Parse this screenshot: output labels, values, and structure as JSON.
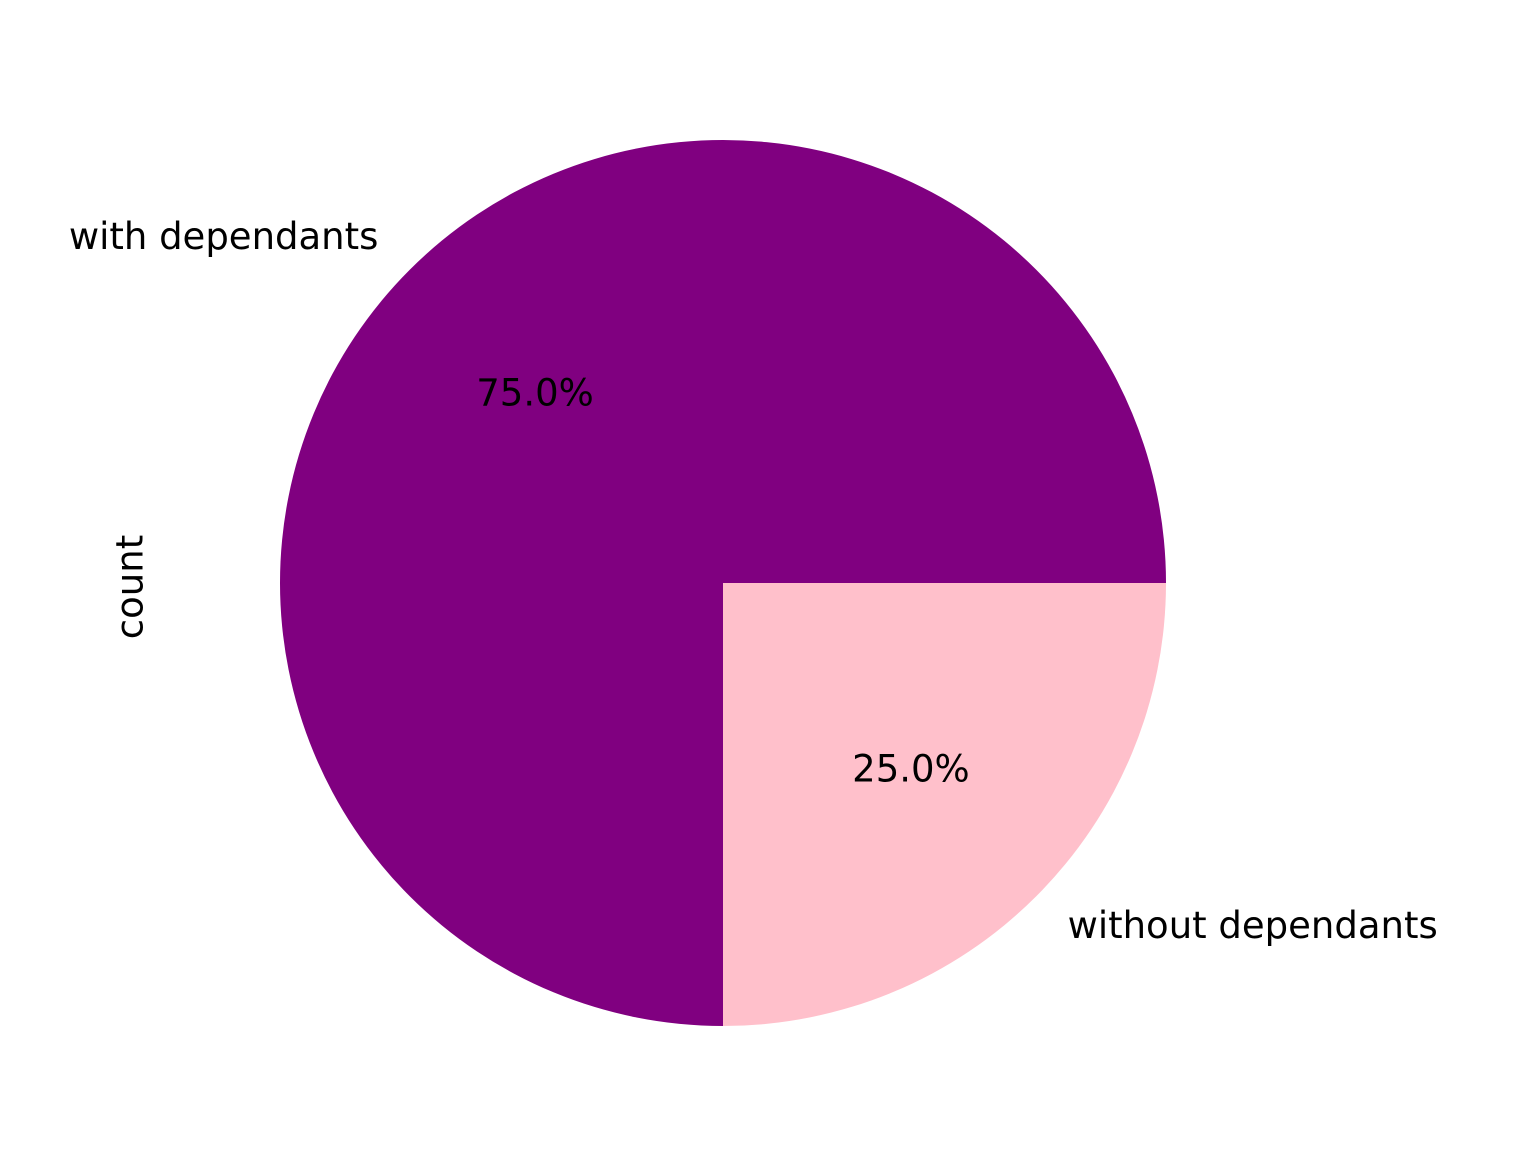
{
  "chart_data": {
    "type": "pie",
    "ylabel": "count",
    "categories": [
      "with dependants",
      "without dependants"
    ],
    "values": [
      75.0,
      25.0
    ],
    "percent_labels": [
      "75.0%",
      "25.0%"
    ],
    "colors": [
      "#800080",
      "#ffc0cb"
    ],
    "start_angle_deg": 0,
    "direction": "counterclockwise"
  }
}
